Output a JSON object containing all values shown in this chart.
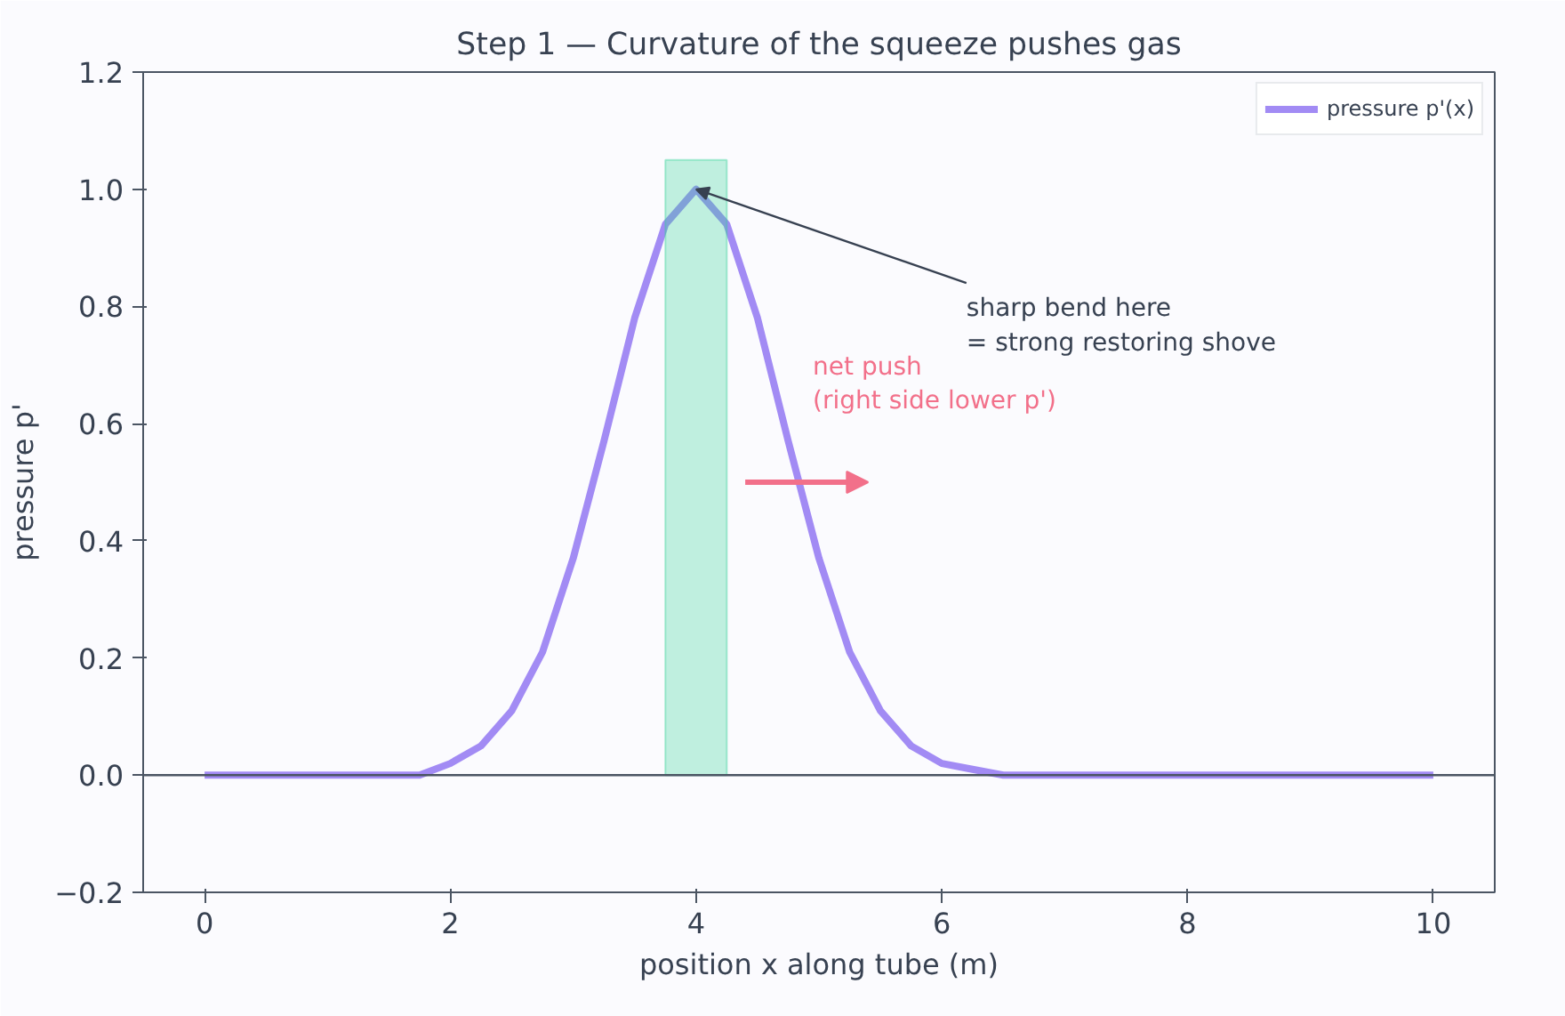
{
  "chart_data": {
    "type": "line",
    "title": "Step 1 — Curvature of the squeeze pushes gas",
    "xlabel": "position x along tube (m)",
    "ylabel": "pressure p'",
    "x": [
      0,
      0.25,
      0.5,
      0.75,
      1,
      1.25,
      1.5,
      1.75,
      2,
      2.25,
      2.5,
      2.75,
      3,
      3.25,
      3.5,
      3.75,
      4,
      4.25,
      4.5,
      4.75,
      5,
      5.25,
      5.5,
      5.75,
      6,
      6.25,
      6.5,
      6.75,
      7,
      7.25,
      7.5,
      7.75,
      8,
      8.25,
      8.5,
      8.75,
      9,
      9.25,
      9.5,
      9.75,
      10
    ],
    "series": [
      {
        "name": "pressure p'(x)",
        "color": "#a28bf4",
        "values": [
          0,
          0,
          0,
          0,
          0,
          0,
          0,
          0,
          0.02,
          0.05,
          0.11,
          0.21,
          0.37,
          0.57,
          0.78,
          0.94,
          1,
          0.94,
          0.78,
          0.57,
          0.37,
          0.21,
          0.11,
          0.05,
          0.02,
          0.01,
          0,
          0,
          0,
          0,
          0,
          0,
          0,
          0,
          0,
          0,
          0,
          0,
          0,
          0,
          0
        ]
      }
    ],
    "xlim": [
      -0.5,
      10.5
    ],
    "ylim": [
      -0.2,
      1.2
    ],
    "xticks": [
      0,
      2,
      4,
      6,
      8,
      10
    ],
    "yticks": [
      {
        "value": -0.2,
        "label": "−0.2"
      },
      {
        "value": 0,
        "label": "0.0"
      },
      {
        "value": 0.2,
        "label": "0.2"
      },
      {
        "value": 0.4,
        "label": "0.4"
      },
      {
        "value": 0.6,
        "label": "0.6"
      },
      {
        "value": 0.8,
        "label": "0.8"
      },
      {
        "value": 1,
        "label": "1.0"
      },
      {
        "value": 1.2,
        "label": "1.2"
      }
    ],
    "ref_lines": [
      {
        "axis": "y",
        "value": 0,
        "color": "#4b5563"
      }
    ],
    "bands": [
      {
        "axis": "x",
        "from": 3.75,
        "to": 4.25,
        "color": "#34d399"
      }
    ],
    "annotations": [
      {
        "text": "sharp bend here\n= strong restoring shove",
        "x": 4,
        "y": 1
      },
      "net push\n(right side lower p')"
    ],
    "grid": false,
    "legend": "top right",
    "marker": "none",
    "line_style": "solid"
  }
}
